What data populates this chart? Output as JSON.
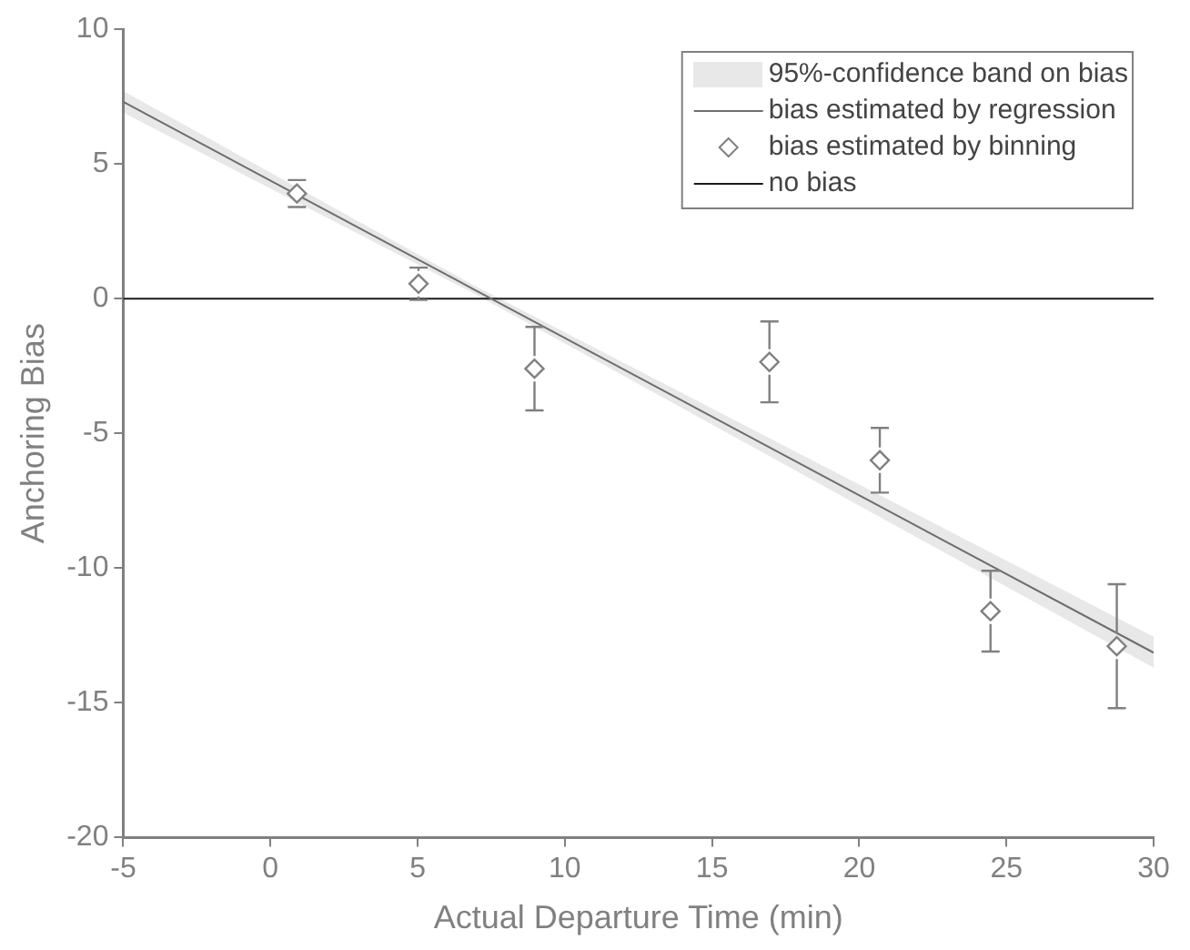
{
  "chart_data": {
    "type": "scatter",
    "xlabel": "Actual Departure Time (min)",
    "ylabel": "Anchoring Bias",
    "xlim": [
      -5,
      30
    ],
    "xticks": [
      -5,
      0,
      5,
      10,
      15,
      20,
      25,
      30
    ],
    "ylim": [
      -20,
      10
    ],
    "yticks": [
      -20,
      -15,
      -10,
      -5,
      0,
      5,
      10
    ],
    "grid": false,
    "legend": "top right",
    "annotations": [
      "95%-confidence band on bias"
    ],
    "series": [
      {
        "name": "bias estimated by regression",
        "type": "line",
        "marker": "none",
        "color": "#6e6e6e",
        "x": [
          -5,
          7,
          30
        ],
        "values": [
          7.3,
          0.29,
          -13.14
        ],
        "lower": [
          6.9,
          0.14,
          -13.7
        ],
        "upper": [
          7.7,
          0.44,
          -12.55
        ]
      },
      {
        "name": "bias estimated by binning",
        "marker": "diamond",
        "color": "#808080",
        "x": [
          0.9,
          5.03,
          8.97,
          16.95,
          20.7,
          24.46,
          28.75
        ],
        "values": [
          3.9,
          0.55,
          -2.6,
          -2.35,
          -6.0,
          -11.6,
          -12.9
        ],
        "errors": [
          0.5,
          0.6,
          1.55,
          1.5,
          1.2,
          1.5,
          2.3
        ]
      },
      {
        "name": "no bias",
        "type": "line",
        "marker": "none",
        "color": "#1a1a1a",
        "x": [
          -5,
          30
        ],
        "values": [
          0,
          0
        ]
      }
    ]
  }
}
